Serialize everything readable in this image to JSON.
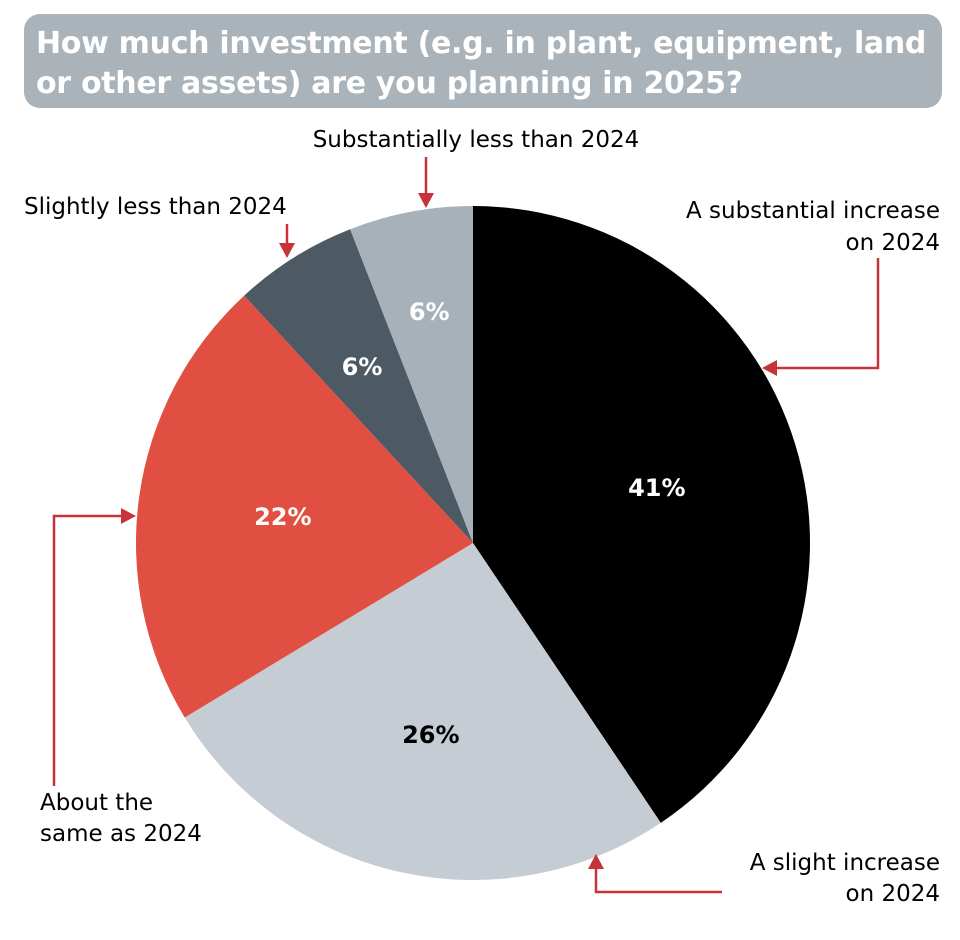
{
  "title": {
    "line1": "How much investment (e.g. in plant, equipment, land",
    "line2": "or other assets) are you planning in 2025?"
  },
  "colors": {
    "title_bg": "#aab3b9",
    "leader": "#c8323a"
  },
  "chart_data": {
    "type": "pie",
    "title": "How much investment (e.g. in plant, equipment, land or other assets) are you planning in 2025?",
    "unit": "%",
    "slices": [
      {
        "label": "A substantial increase on 2024",
        "label_lines": [
          "A substantial increase",
          "on 2024"
        ],
        "value": 41,
        "value_label": "41%",
        "color": "#000000",
        "text_color": "#ffffff"
      },
      {
        "label": "A slight increase on 2024",
        "label_lines": [
          "A slight increase",
          "on 2024"
        ],
        "value": 26,
        "value_label": "26%",
        "color": "#c5ccd3",
        "text_color": "#000000"
      },
      {
        "label": "About the same as 2024",
        "label_lines": [
          "About the",
          "same as 2024"
        ],
        "value": 22,
        "value_label": "22%",
        "color": "#e04f41",
        "text_color": "#ffffff"
      },
      {
        "label": "Slightly less than 2024",
        "label_lines": [
          "Slightly less than 2024"
        ],
        "value": 6,
        "value_label": "6%",
        "color": "#4d5a64",
        "text_color": "#ffffff"
      },
      {
        "label": "Substantially less than 2024",
        "label_lines": [
          "Substantially less than 2024"
        ],
        "value": 6,
        "value_label": "6%",
        "color": "#a7b1b9",
        "text_color": "#ffffff"
      }
    ]
  }
}
